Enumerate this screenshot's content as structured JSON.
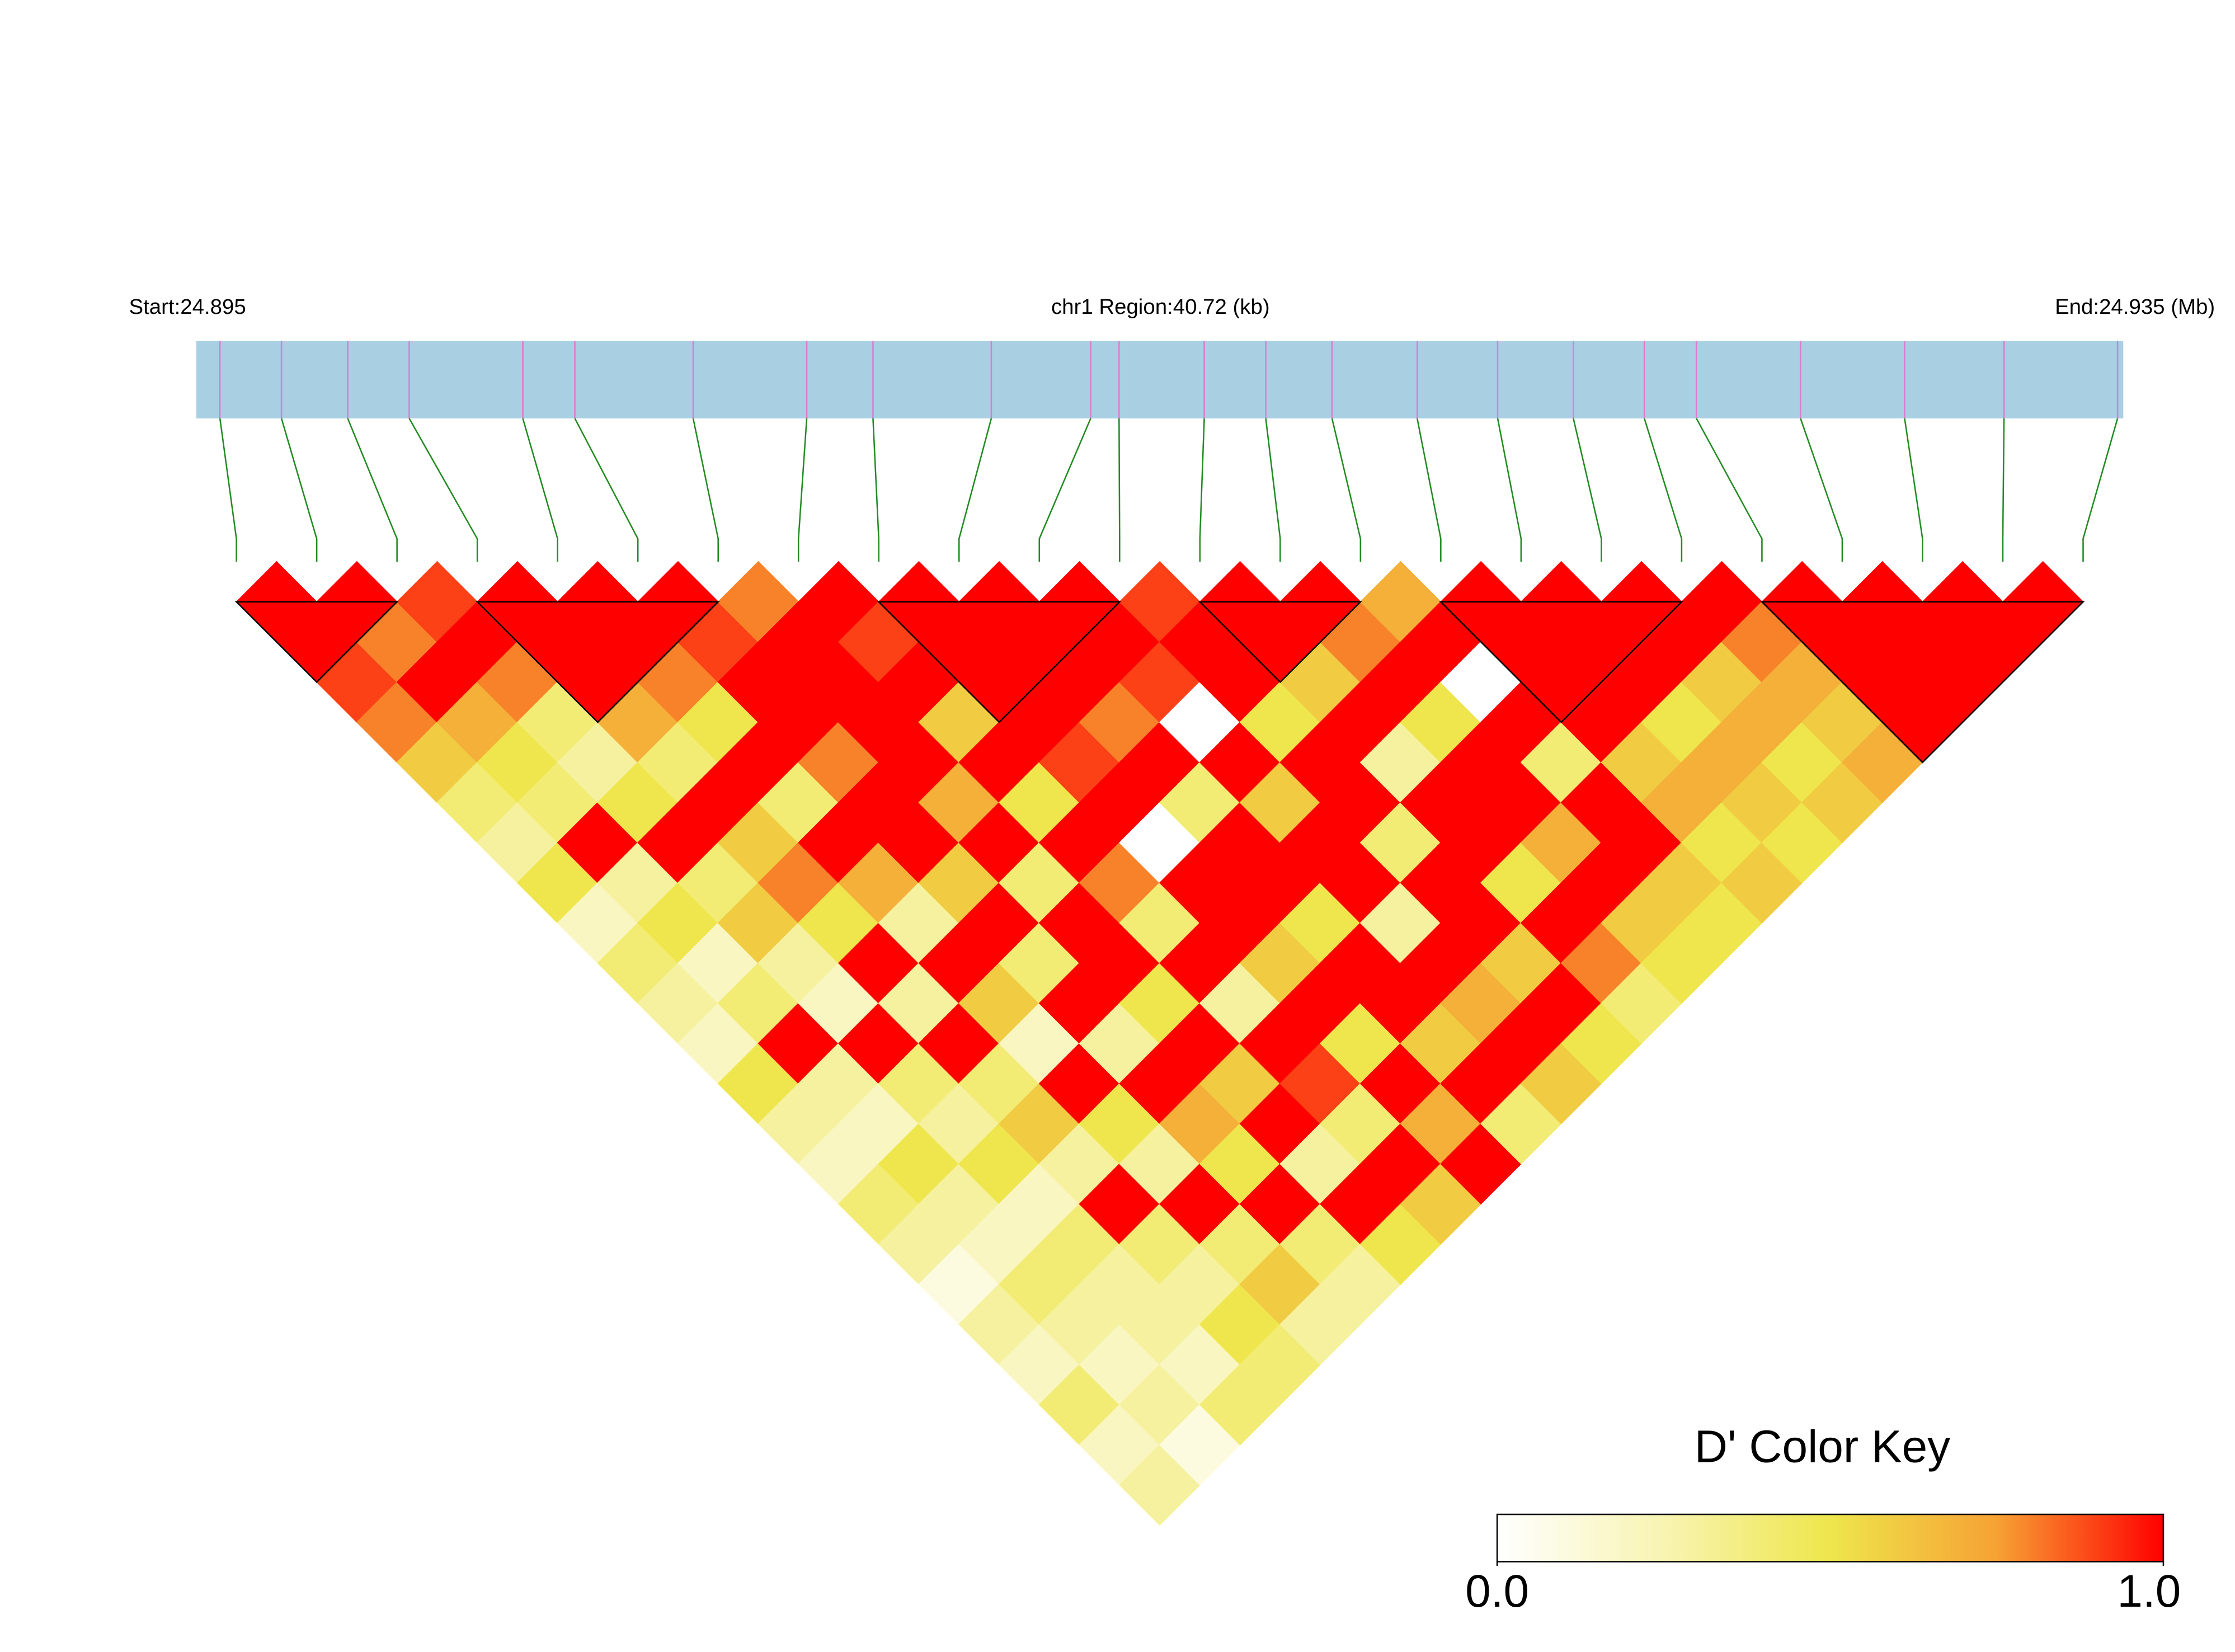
{
  "chart_data": {
    "type": "ld_heatmap",
    "start_label": "Start:24.895",
    "region_label": "chr1 Region:40.72 (kb)",
    "end_label": "End:24.935 (Mb)",
    "xlim": [
      0,
      40.72
    ],
    "positions": [
      0.5,
      1.8,
      3.2,
      4.5,
      6.9,
      8.0,
      10.5,
      12.9,
      14.3,
      16.8,
      18.9,
      19.5,
      21.3,
      22.6,
      24.0,
      25.8,
      27.5,
      29.1,
      30.6,
      31.7,
      33.9,
      36.1,
      38.2,
      40.6
    ],
    "ld": [
      [
        1,
        1,
        0.9,
        0.8,
        0.6,
        0.4,
        0.3,
        0.5,
        0.2,
        0.4,
        0.3,
        0.2,
        0.5,
        0.3,
        0.2,
        0.4,
        0.3,
        0.1,
        0.3,
        0.2,
        0.4,
        0.2,
        0.3
      ],
      [
        1,
        0.8,
        1,
        0.7,
        0.5,
        0.4,
        1,
        0.3,
        0.5,
        0.2,
        0.4,
        1,
        0.3,
        0.2,
        0.5,
        0.3,
        0.2,
        0.4,
        0.3,
        0.2,
        0.3,
        0.1
      ],
      [
        0.9,
        1,
        0.8,
        0.4,
        0.3,
        0.5,
        1,
        0.4,
        0.6,
        0.3,
        0.2,
        1,
        0.4,
        0.3,
        0.5,
        0.2,
        0.4,
        0.3,
        0.3,
        0.2,
        0.4
      ],
      [
        1,
        1,
        1,
        0.7,
        0.4,
        1,
        0.6,
        0.8,
        0.5,
        1,
        0.3,
        1,
        0.4,
        0.6,
        0.3,
        1,
        0.4,
        0.3,
        0.5,
        0.4
      ],
      [
        1,
        1,
        0.8,
        0.5,
        1,
        0.4,
        1,
        0.7,
        0.3,
        1,
        0.6,
        0.2,
        1,
        0.5,
        0.3,
        1,
        0.4,
        0.6,
        0.3
      ],
      [
        1,
        0.9,
        1,
        1,
        0.8,
        1,
        1,
        0.6,
        1,
        0.4,
        1,
        0.3,
        1,
        0.7,
        0.5,
        1,
        0.4,
        0.3
      ],
      [
        0.8,
        1,
        1,
        1,
        1,
        0.7,
        1,
        0.4,
        1,
        1,
        0.5,
        1,
        0.6,
        1,
        0.3,
        1,
        0.5
      ],
      [
        1,
        0.9,
        1,
        0.6,
        1,
        0.5,
        1,
        0.8,
        0.4,
        1,
        0.3,
        1,
        0.9,
        0.4,
        1,
        0.6
      ],
      [
        1,
        1,
        1,
        1,
        0.9,
        1,
        0,
        1,
        1,
        0.6,
        1,
        0.5,
        1,
        0.7,
        1
      ],
      [
        1,
        1,
        1,
        0.8,
        1,
        0.4,
        1,
        1,
        0.5,
        1,
        1,
        0.6,
        1,
        0.4
      ],
      [
        1,
        1,
        0.9,
        0,
        1,
        0.6,
        1,
        1,
        0.3,
        1,
        0.7,
        1,
        0.6
      ],
      [
        0.9,
        1,
        1,
        0.5,
        1,
        1,
        0.4,
        1,
        1,
        0.6,
        1,
        0.5
      ],
      [
        1,
        1,
        0.6,
        1,
        0.3,
        1,
        1,
        0.5,
        1,
        0.8,
        0.4
      ],
      [
        1,
        0.8,
        1,
        0.5,
        1,
        1,
        0.7,
        1,
        0.6,
        0.5
      ],
      [
        0.7,
        1,
        0,
        1,
        0.4,
        1,
        1,
        0.6,
        0.5
      ],
      [
        1,
        1,
        1,
        1,
        0.6,
        0.7,
        0.5,
        0.6
      ],
      [
        1,
        1,
        1,
        0.5,
        0.7,
        0.6,
        0.5
      ],
      [
        1,
        1,
        0.6,
        0.7,
        0.5,
        0.6
      ],
      [
        1,
        0.8,
        0.7,
        0.6,
        0.7
      ],
      [
        1,
        1,
        1,
        1
      ],
      [
        1,
        1,
        1
      ],
      [
        1,
        1
      ],
      [
        1
      ]
    ],
    "blocks": [
      [
        0,
        2
      ],
      [
        3,
        6
      ],
      [
        8,
        11
      ],
      [
        12,
        14
      ],
      [
        15,
        18
      ],
      [
        19,
        23
      ]
    ],
    "colors": [
      "#ffffff",
      "#f8f4b2",
      "#eee64c",
      "#f6a234",
      "#ff0000"
    ],
    "bar_color": "#a8cfe2",
    "marker_color": "#e07ad0",
    "link_color": "#228b22",
    "key": {
      "title": "D' Color Key",
      "lim": [
        0,
        1
      ],
      "ticks": [
        {
          "value": 0,
          "label": "0.0"
        },
        {
          "value": 1,
          "label": "1.0"
        }
      ]
    }
  }
}
